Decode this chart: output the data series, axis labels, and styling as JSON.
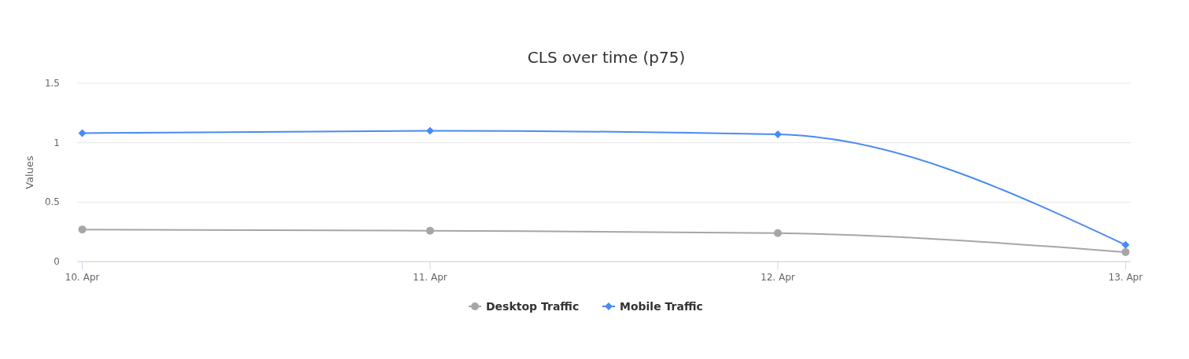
{
  "chart_data": {
    "type": "line",
    "title": "CLS over time (p75)",
    "ylabel": "Values",
    "categories": [
      "10. Apr",
      "11. Apr",
      "12. Apr",
      "13. Apr"
    ],
    "series": [
      {
        "name": "Desktop Traffic",
        "color": "#a6a6a6",
        "marker": "circle",
        "values": [
          0.27,
          0.26,
          0.24,
          0.08
        ]
      },
      {
        "name": "Mobile Traffic",
        "color": "#4a8af4",
        "marker": "diamond",
        "values": [
          1.08,
          1.1,
          1.07,
          0.14
        ]
      }
    ],
    "ylim": [
      0,
      1.5
    ],
    "yticks": [
      0,
      0.5,
      1,
      1.5
    ],
    "grid": "y",
    "legend": "bottom"
  }
}
